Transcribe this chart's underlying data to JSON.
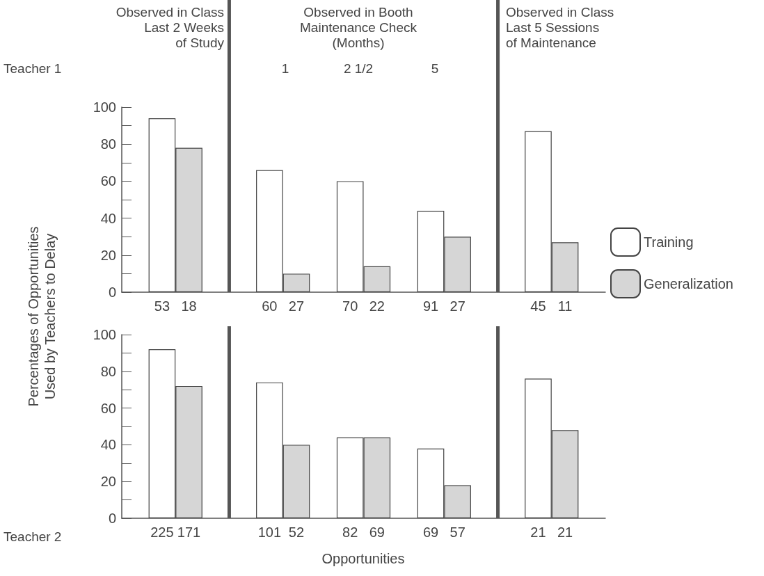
{
  "chart_data": [
    {
      "type": "bar",
      "ylabel": "Percentages of Opportunities\nUsed by Teachers to Delay",
      "annotations": [
        "Observed in Class\nLast 2 Weeks\nof Study",
        "Observed in Booth\nMaintenance Check\n(Months)",
        "1",
        "2 1/2",
        "5",
        "Observed in Class\nLast 5 Sessions\nof Maintenance",
        "Teacher 1"
      ],
      "categories": [
        null,
        "53",
        "18",
        null,
        null,
        "60",
        "27",
        null,
        "70",
        "22",
        null,
        "91",
        "27",
        null,
        null,
        "45",
        "11",
        null
      ],
      "series": [
        {
          "name": "Training",
          "color": "#ffffff",
          "values": [
            null,
            94,
            null,
            null,
            null,
            66,
            null,
            null,
            60,
            null,
            null,
            44,
            null,
            null,
            null,
            87,
            null,
            null
          ]
        },
        {
          "name": "Generalization",
          "color": "#d6d6d6",
          "values": [
            null,
            null,
            78,
            null,
            null,
            null,
            10,
            null,
            null,
            14,
            null,
            null,
            30,
            null,
            null,
            null,
            27,
            null
          ]
        }
      ],
      "ylim": [
        0,
        100
      ],
      "yticks": [
        0,
        {
          "value": 10,
          "label": null
        },
        20,
        {
          "value": 30,
          "label": null
        },
        40,
        {
          "value": 50,
          "label": null
        },
        60,
        {
          "value": 70,
          "label": null
        },
        80,
        {
          "value": 90,
          "label": null
        },
        100
      ],
      "grid": false,
      "legend": "right"
    },
    {
      "type": "bar",
      "xlabel": "Opportunities",
      "annotations": [
        "Teacher 2"
      ],
      "categories": [
        null,
        "225",
        "171",
        null,
        null,
        "101",
        "52",
        null,
        "82",
        "69",
        null,
        "69",
        "57",
        null,
        null,
        "21",
        "21",
        null
      ],
      "series": [
        {
          "color": "#ffffff",
          "values": [
            null,
            92,
            null,
            null,
            null,
            74,
            null,
            null,
            44,
            null,
            null,
            38,
            null,
            null,
            null,
            76,
            null,
            null
          ]
        },
        {
          "color": "#d6d6d6",
          "values": [
            null,
            null,
            72,
            null,
            null,
            null,
            40,
            null,
            null,
            44,
            null,
            null,
            18,
            null,
            null,
            null,
            48,
            null
          ]
        }
      ],
      "ylim": [
        0,
        100
      ],
      "yticks": [
        0,
        {
          "value": 10,
          "label": null
        },
        20,
        {
          "value": 30,
          "label": null
        },
        40,
        {
          "value": 50,
          "label": null
        },
        60,
        {
          "value": 70,
          "label": null
        },
        80,
        {
          "value": 90,
          "label": null
        },
        100
      ],
      "grid": false
    }
  ]
}
